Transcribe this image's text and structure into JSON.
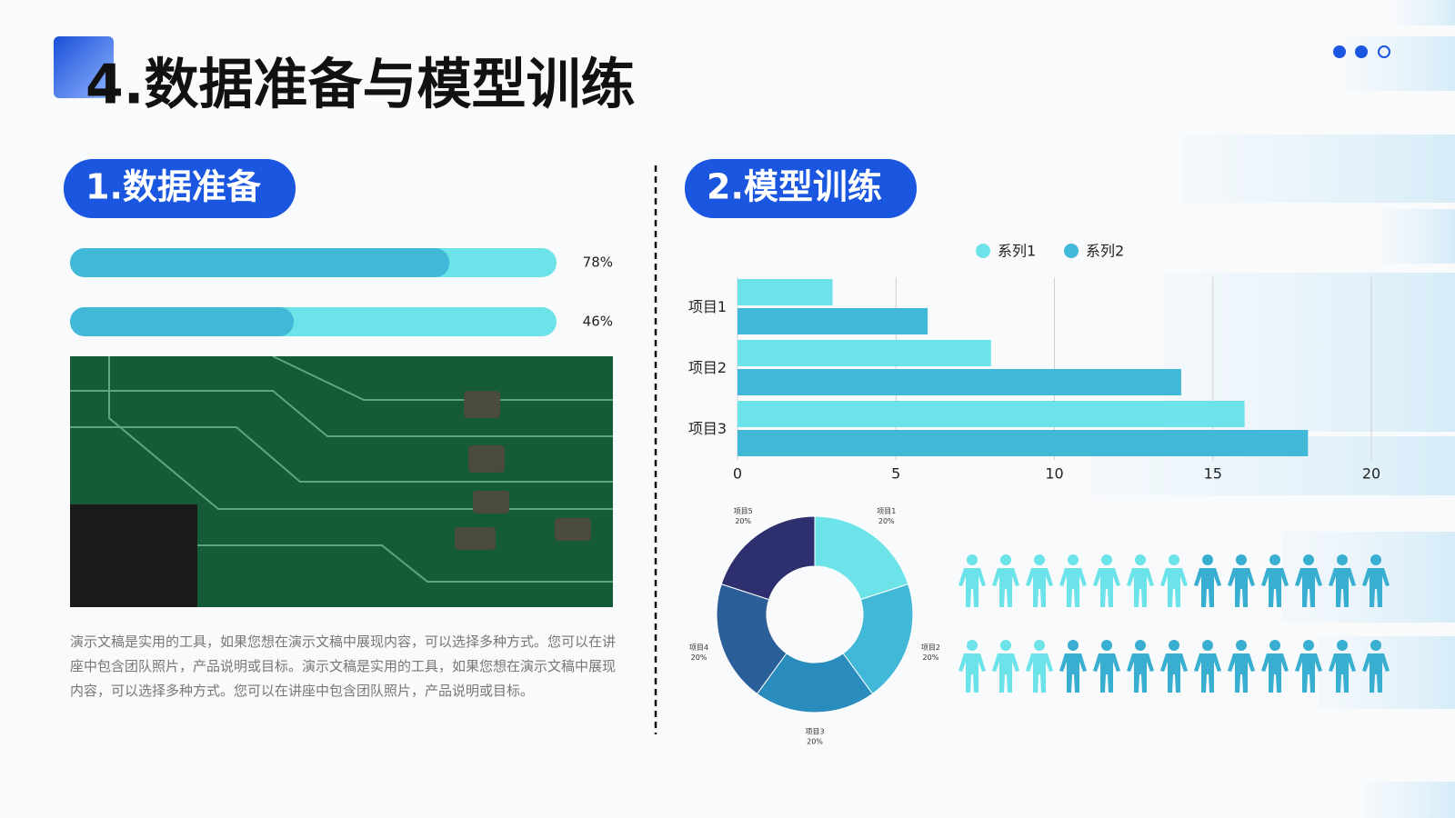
{
  "title": "4.数据准备与模型训练",
  "left": {
    "heading": "1.数据准备",
    "paragraph": "演示文稿是实用的工具，如果您想在演示文稿中展现内容，可以选择多种方式。您可以在讲座中包含团队照片，产品说明或目标。演示文稿是实用的工具，如果您想在演示文稿中展现内容，可以选择多种方式。您可以在讲座中包含团队照片，产品说明或目标。"
  },
  "right": {
    "heading": "2.模型训练"
  },
  "chart_data": [
    {
      "type": "progress",
      "values": [
        78,
        46
      ],
      "value_labels": [
        "78%",
        "46%"
      ],
      "color": "#41b8d8",
      "track_color": "#6ce3e8",
      "xlim": [
        0,
        100
      ]
    },
    {
      "type": "hbar",
      "categories": [
        "项目1",
        "项目2",
        "项目3"
      ],
      "series": [
        {
          "name": "系列1",
          "color": "#6ce3e8",
          "values": [
            3,
            8,
            16
          ]
        },
        {
          "name": "系列2",
          "color": "#41b8d8",
          "values": [
            6,
            14,
            18
          ]
        }
      ],
      "xlim": [
        0,
        20
      ],
      "xticks": [
        0,
        5,
        10,
        15,
        20
      ],
      "grid": true,
      "legend": "top"
    },
    {
      "type": "donut",
      "categories": [
        "项目1",
        "项目2",
        "项目3",
        "项目4",
        "项目5"
      ],
      "values": [
        20,
        20,
        20,
        20,
        20
      ],
      "value_labels": [
        "20%",
        "20%",
        "20%",
        "20%",
        "20%"
      ],
      "colors": [
        "#6ce3e8",
        "#41b8d8",
        "#2a8bbd",
        "#2b5f9a",
        "#2e2f6e"
      ]
    },
    {
      "type": "pictogram",
      "series": [
        {
          "color": "#6ce3e8",
          "values": [
            7,
            3
          ]
        },
        {
          "color": "#38aed0",
          "values": [
            6,
            10
          ]
        }
      ]
    }
  ]
}
